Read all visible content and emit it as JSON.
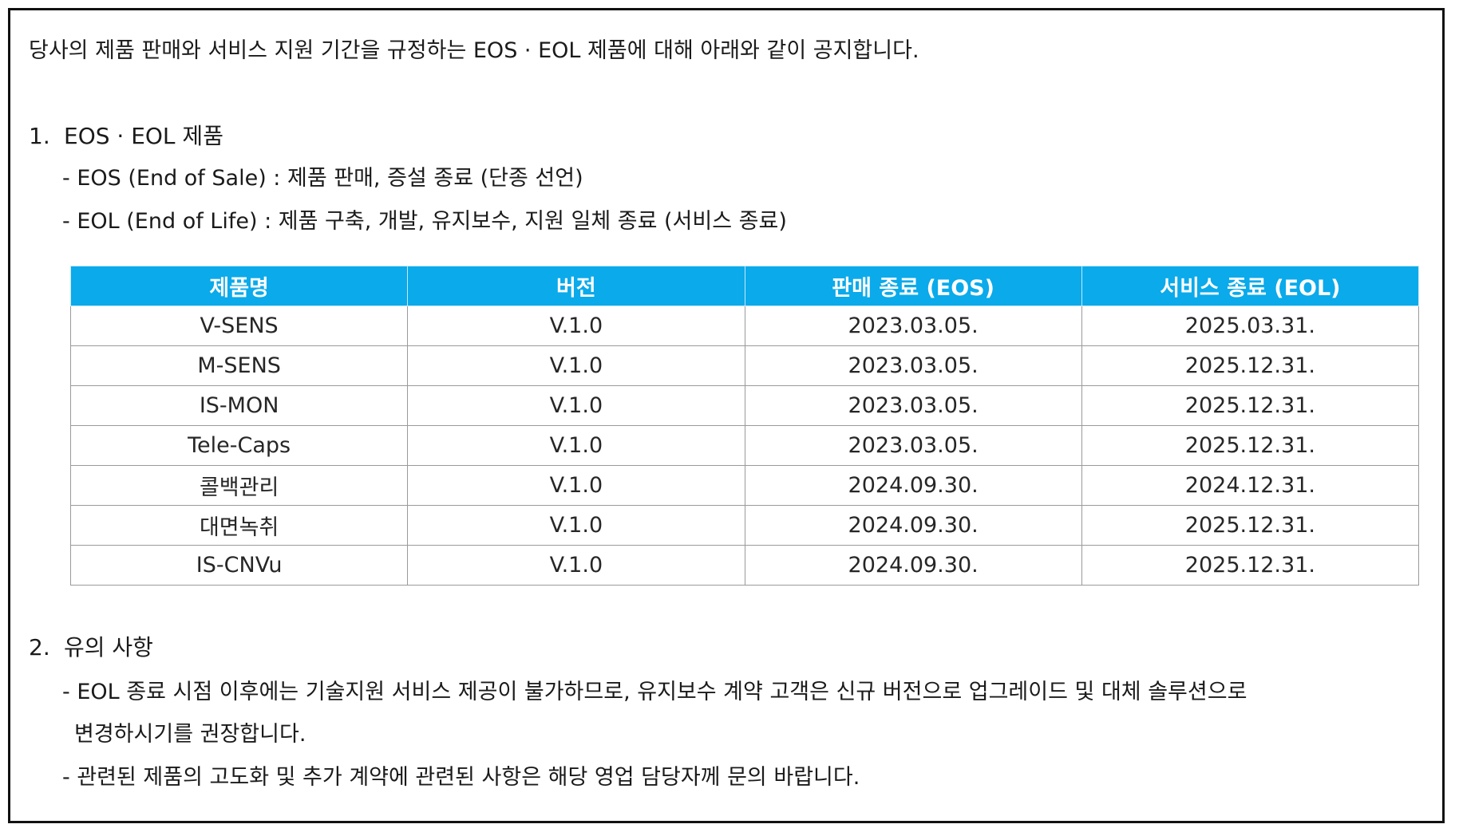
{
  "intro": "당사의 제품 판매와 서비스 지원 기간을 규정하는 EOS · EOL 제품에 대해 아래와 같이 공지합니다.",
  "section1": {
    "number": "1.",
    "title": "EOS · EOL 제품",
    "bullets": [
      "- EOS (End of Sale) : 제품 판매, 증설 종료 (단종 선언)",
      "- EOL (End of Life) : 제품 구축, 개발, 유지보수, 지원 일체 종료 (서비스 종료)"
    ]
  },
  "table": {
    "header_color": "#0aaaeb",
    "headers": [
      "제품명",
      "버전",
      "판매 종료 (EOS)",
      "서비스 종료 (EOL)"
    ],
    "rows": [
      [
        "V-SENS",
        "V.1.0",
        "2023.03.05.",
        "2025.03.31."
      ],
      [
        "M-SENS",
        "V.1.0",
        "2023.03.05.",
        "2025.12.31."
      ],
      [
        "IS-MON",
        "V.1.0",
        "2023.03.05.",
        "2025.12.31."
      ],
      [
        "Tele-Caps",
        "V.1.0",
        "2023.03.05.",
        "2025.12.31."
      ],
      [
        "콜백관리",
        "V.1.0",
        "2024.09.30.",
        "2024.12.31."
      ],
      [
        "대면녹취",
        "V.1.0",
        "2024.09.30.",
        "2025.12.31."
      ],
      [
        "IS-CNVu",
        "V.1.0",
        "2024.09.30.",
        "2025.12.31."
      ]
    ]
  },
  "section2": {
    "number": "2.",
    "title": "유의 사항",
    "bullets": [
      "- EOL 종료 시점 이후에는 기술지원 서비스 제공이 불가하므로, 유지보수 계약 고객은 신규 버전으로 업그레이드 및 대체 솔루션으로",
      "변경하시기를 권장합니다.",
      "- 관련된 제품의 고도화 및 추가 계약에 관련된 사항은 해당 영업 담당자께 문의 바랍니다."
    ]
  }
}
